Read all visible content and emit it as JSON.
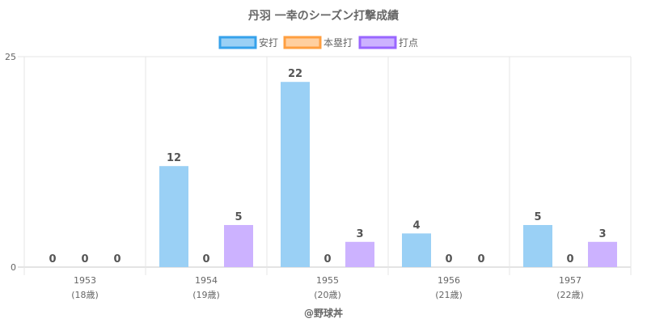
{
  "chart_data": {
    "type": "bar",
    "title": "丹羽 一幸のシーズン打撃成績",
    "categories": [
      "1953",
      "1954",
      "1955",
      "1956",
      "1957"
    ],
    "category_sublabels": [
      "(18歳)",
      "(19歳)",
      "(20歳)",
      "(21歳)",
      "(22歳)"
    ],
    "series": [
      {
        "name": "安打",
        "values": [
          0,
          12,
          22,
          4,
          5
        ],
        "fill": "#9ad0f5",
        "stroke": "#36a2eb"
      },
      {
        "name": "本塁打",
        "values": [
          0,
          0,
          0,
          0,
          0
        ],
        "fill": "#ffcf9f",
        "stroke": "#ff9f40"
      },
      {
        "name": "打点",
        "values": [
          0,
          5,
          3,
          0,
          3
        ],
        "fill": "#ccb2ff",
        "stroke": "#9966ff"
      }
    ],
    "ylim": [
      0,
      25
    ],
    "y_ticks": [
      "0",
      "25"
    ],
    "grid": true,
    "legend_position": "top",
    "xlabel": "@野球丼",
    "ylabel": ""
  }
}
